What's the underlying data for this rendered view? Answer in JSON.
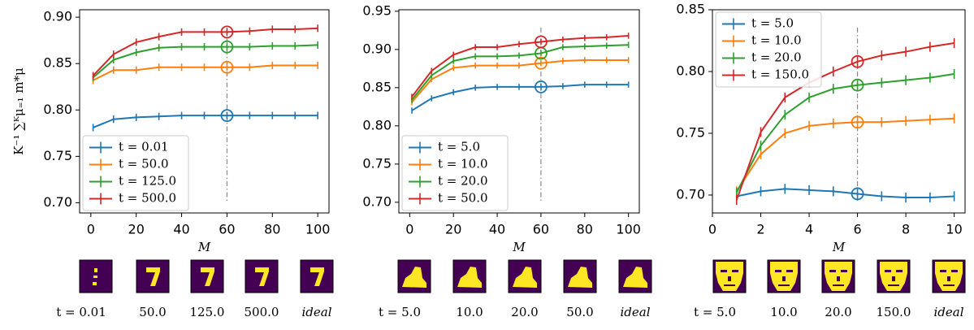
{
  "chart_data": [
    {
      "type": "line",
      "x_label": "M",
      "y_label": "K⁻¹ ∑ᴷμ₌₁ m*μ",
      "x": [
        1,
        10,
        20,
        30,
        40,
        50,
        60,
        70,
        80,
        90,
        100
      ],
      "xlim": [
        -4.95,
        104.95
      ],
      "xticks": [
        0,
        20,
        40,
        60,
        80,
        100
      ],
      "ylim": [
        0.689,
        0.908
      ],
      "yticks": [
        {
          "value": 0.7,
          "label": "0.70"
        },
        0.75,
        {
          "value": 0.8,
          "label": "0.80"
        },
        0.85,
        {
          "value": 0.9,
          "label": "0.90"
        }
      ],
      "highlight_x": 60,
      "legend": "lower left",
      "series": [
        {
          "name": "t = 0.01",
          "color": "#1f77b4",
          "error": 0.004,
          "values": [
            0.781,
            0.79,
            0.792,
            0.793,
            0.794,
            0.794,
            0.794,
            0.794,
            0.794,
            0.794,
            0.794
          ]
        },
        {
          "name": "t = 50.0",
          "color": "#ff7f0e",
          "error": 0.004,
          "values": [
            0.832,
            0.843,
            0.843,
            0.846,
            0.846,
            0.846,
            0.846,
            0.846,
            0.848,
            0.848,
            0.848
          ]
        },
        {
          "name": "t = 125.0",
          "color": "#2ca02c",
          "error": 0.004,
          "values": [
            0.835,
            0.854,
            0.862,
            0.867,
            0.868,
            0.868,
            0.868,
            0.868,
            0.869,
            0.869,
            0.87
          ]
        },
        {
          "name": "t = 500.0",
          "color": "#d62728",
          "error": 0.004,
          "values": [
            0.837,
            0.86,
            0.873,
            0.879,
            0.884,
            0.884,
            0.884,
            0.885,
            0.887,
            0.887,
            0.888
          ]
        }
      ],
      "thumbnail_labels": [
        "t = 0.01",
        "50.0",
        "125.0",
        "500.0",
        "ideal"
      ]
    },
    {
      "type": "line",
      "x_label": "M",
      "x": [
        1,
        10,
        20,
        30,
        40,
        50,
        60,
        70,
        80,
        90,
        100
      ],
      "xlim": [
        -4.95,
        104.95
      ],
      "xticks": [
        0,
        20,
        40,
        60,
        80,
        100
      ],
      "ylim": [
        0.686,
        0.952
      ],
      "yticks": [
        {
          "value": 0.7,
          "label": "0.70"
        },
        0.75,
        {
          "value": 0.8,
          "label": "0.80"
        },
        0.85,
        {
          "value": 0.9,
          "label": "0.90"
        },
        0.95
      ],
      "highlight_x": 60,
      "legend": "lower left",
      "series": [
        {
          "name": "t = 5.0",
          "color": "#1f77b4",
          "error": 0.004,
          "values": [
            0.82,
            0.836,
            0.844,
            0.85,
            0.851,
            0.851,
            0.851,
            0.852,
            0.854,
            0.854,
            0.854
          ]
        },
        {
          "name": "t = 10.0",
          "color": "#ff7f0e",
          "error": 0.004,
          "values": [
            0.831,
            0.861,
            0.876,
            0.879,
            0.879,
            0.879,
            0.882,
            0.885,
            0.886,
            0.886,
            0.886
          ]
        },
        {
          "name": "t = 20.0",
          "color": "#2ca02c",
          "error": 0.004,
          "values": [
            0.834,
            0.866,
            0.885,
            0.891,
            0.891,
            0.892,
            0.895,
            0.903,
            0.904,
            0.905,
            0.906
          ]
        },
        {
          "name": "t = 50.0",
          "color": "#d62728",
          "error": 0.004,
          "values": [
            0.838,
            0.872,
            0.893,
            0.903,
            0.903,
            0.907,
            0.91,
            0.913,
            0.915,
            0.916,
            0.918
          ]
        }
      ],
      "thumbnail_labels": [
        "t = 5.0",
        "10.0",
        "20.0",
        "50.0",
        "ideal"
      ]
    },
    {
      "type": "line",
      "x_label": "M",
      "x": [
        1,
        2,
        3,
        4,
        5,
        6,
        7,
        8,
        9,
        10
      ],
      "xlim": [
        0,
        10.45
      ],
      "xticks": [
        0,
        2,
        4,
        6,
        8,
        10
      ],
      "ylim": [
        0.6855,
        0.85
      ],
      "yticks": [
        {
          "value": 0.7,
          "label": "0.70"
        },
        0.75,
        {
          "value": 0.8,
          "label": "0.80"
        },
        0.85
      ],
      "highlight_x": 6,
      "legend": "upper left",
      "series": [
        {
          "name": "t = 5.0",
          "color": "#1f77b4",
          "error": 0.004,
          "values": [
            0.699,
            0.703,
            0.705,
            0.704,
            0.703,
            0.701,
            0.699,
            0.698,
            0.698,
            0.699
          ]
        },
        {
          "name": "t = 10.0",
          "color": "#ff7f0e",
          "error": 0.004,
          "values": [
            0.703,
            0.733,
            0.75,
            0.756,
            0.758,
            0.759,
            0.759,
            0.76,
            0.761,
            0.762
          ]
        },
        {
          "name": "t = 20.0",
          "color": "#2ca02c",
          "error": 0.004,
          "values": [
            0.702,
            0.74,
            0.765,
            0.779,
            0.786,
            0.789,
            0.791,
            0.793,
            0.795,
            0.798
          ]
        },
        {
          "name": "t = 150.0",
          "color": "#d62728",
          "error": 0.004,
          "values": [
            0.696,
            0.751,
            0.779,
            0.791,
            0.8,
            0.808,
            0.813,
            0.816,
            0.82,
            0.823
          ]
        }
      ],
      "thumbnail_labels": [
        "t = 5.0",
        "10.0",
        "20.0",
        "150.0",
        "ideal"
      ]
    }
  ]
}
